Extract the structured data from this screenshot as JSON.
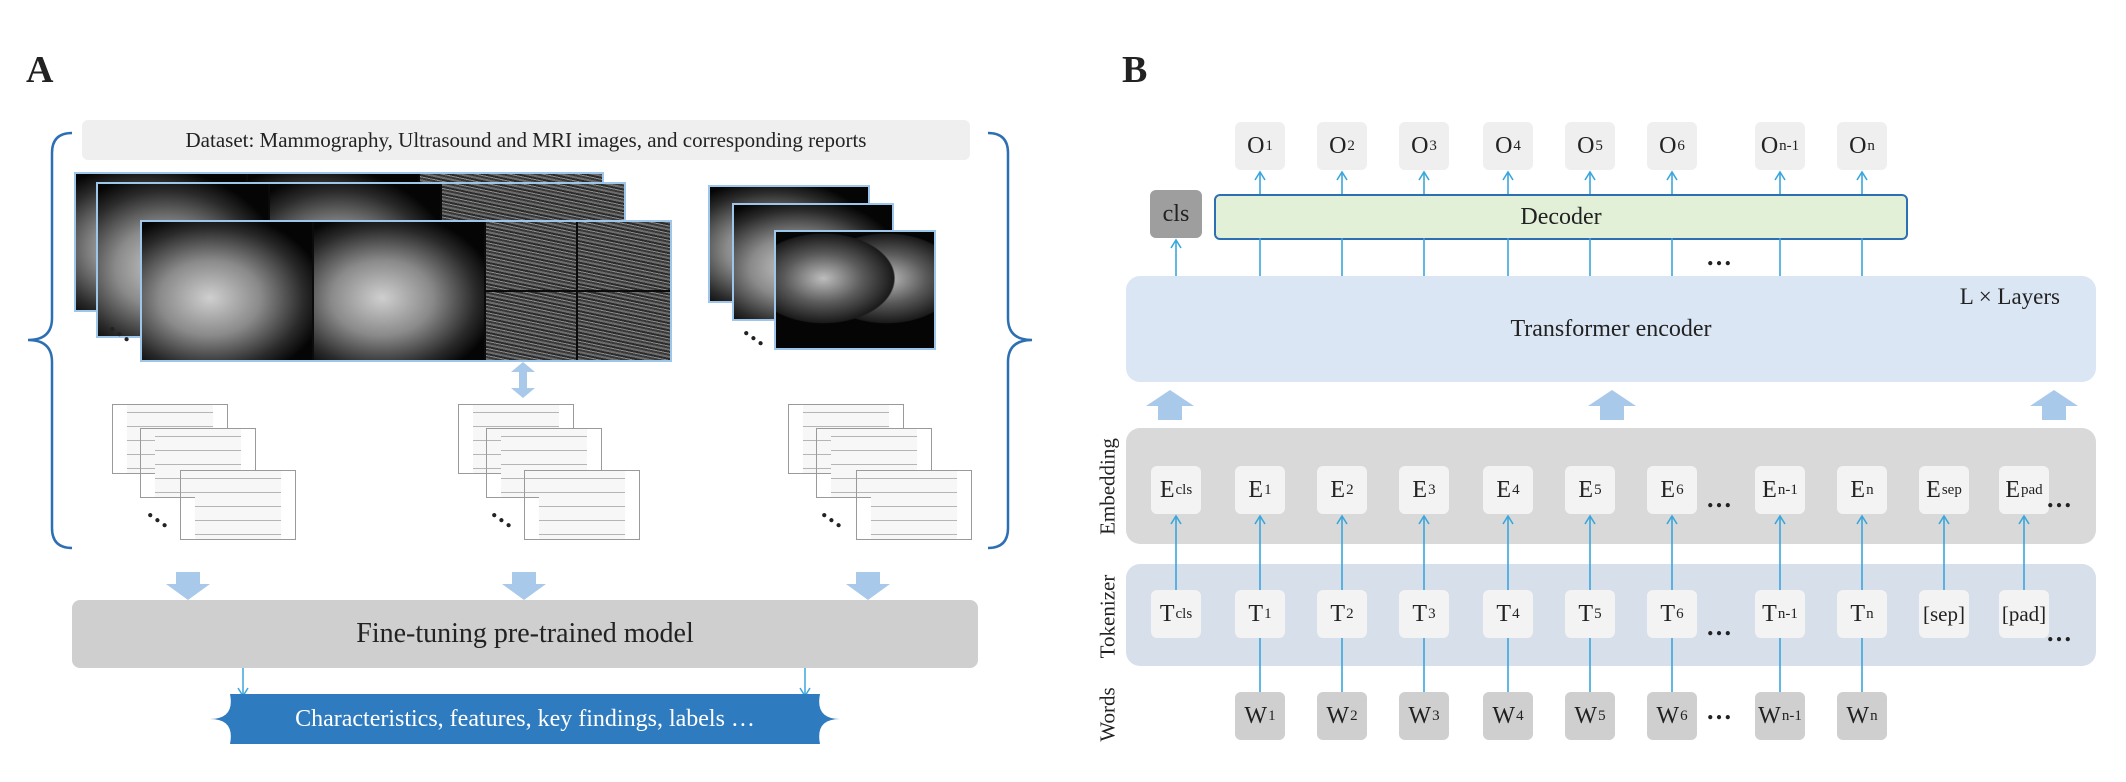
{
  "panel_a": {
    "letter": "A",
    "dataset_label": "Dataset: Mammography, Ultrasound and MRI images, and corresponding reports",
    "finetune_label": "Fine-tuning pre-trained model",
    "output_label": "Characteristics, features, key findings, labels …",
    "ellipsis": "…"
  },
  "panel_b": {
    "letter": "B",
    "cls_label": "cls",
    "decoder_label": "Decoder",
    "encoder_label": "Transformer encoder",
    "layers_label": "L × Layers",
    "row_labels": {
      "embedding": "Embedding",
      "tokenizer": "Tokenizer",
      "words": "Words"
    },
    "ellipsis": "…",
    "outputs": [
      {
        "base": "O",
        "sub": "1"
      },
      {
        "base": "O",
        "sub": "2"
      },
      {
        "base": "O",
        "sub": "3"
      },
      {
        "base": "O",
        "sub": "4"
      },
      {
        "base": "O",
        "sub": "5"
      },
      {
        "base": "O",
        "sub": "6"
      },
      {
        "base": "O",
        "sub": "n-1"
      },
      {
        "base": "O",
        "sub": "n"
      }
    ],
    "embeddings": [
      {
        "base": "E",
        "sub": "cls"
      },
      {
        "base": "E",
        "sub": "1"
      },
      {
        "base": "E",
        "sub": "2"
      },
      {
        "base": "E",
        "sub": "3"
      },
      {
        "base": "E",
        "sub": "4"
      },
      {
        "base": "E",
        "sub": "5"
      },
      {
        "base": "E",
        "sub": "6"
      },
      {
        "base": "E",
        "sub": "n-1"
      },
      {
        "base": "E",
        "sub": "n"
      },
      {
        "base": "E",
        "sub": "sep"
      },
      {
        "base": "E",
        "sub": "pad"
      }
    ],
    "tokens": [
      {
        "base": "T",
        "sub": "cls"
      },
      {
        "base": "T",
        "sub": "1"
      },
      {
        "base": "T",
        "sub": "2"
      },
      {
        "base": "T",
        "sub": "3"
      },
      {
        "base": "T",
        "sub": "4"
      },
      {
        "base": "T",
        "sub": "5"
      },
      {
        "base": "T",
        "sub": "6"
      },
      {
        "base": "T",
        "sub": "n-1"
      },
      {
        "base": "T",
        "sub": "n"
      },
      {
        "base": "[sep]",
        "sub": ""
      },
      {
        "base": "[pad]",
        "sub": ""
      }
    ],
    "words": [
      {
        "base": "W",
        "sub": "1"
      },
      {
        "base": "W",
        "sub": "2"
      },
      {
        "base": "W",
        "sub": "3"
      },
      {
        "base": "W",
        "sub": "4"
      },
      {
        "base": "W",
        "sub": "5"
      },
      {
        "base": "W",
        "sub": "6"
      },
      {
        "base": "W",
        "sub": "n-1"
      },
      {
        "base": "W",
        "sub": "n"
      }
    ]
  },
  "colors": {
    "brace": "#2d6fb3",
    "arrow": "#3aa6dc",
    "block_arrow": "#a9c9ea",
    "encoder_bg": "#dbe6f4",
    "decoder_bg": "#e3f0d8",
    "decoder_border": "#2d6fb3",
    "embedding_bg": "#d9d9d9",
    "tokenizer_bg": "#d7dfeb",
    "finetune_bg": "#cfcfcf",
    "output_bg": "#2f7bc0"
  }
}
